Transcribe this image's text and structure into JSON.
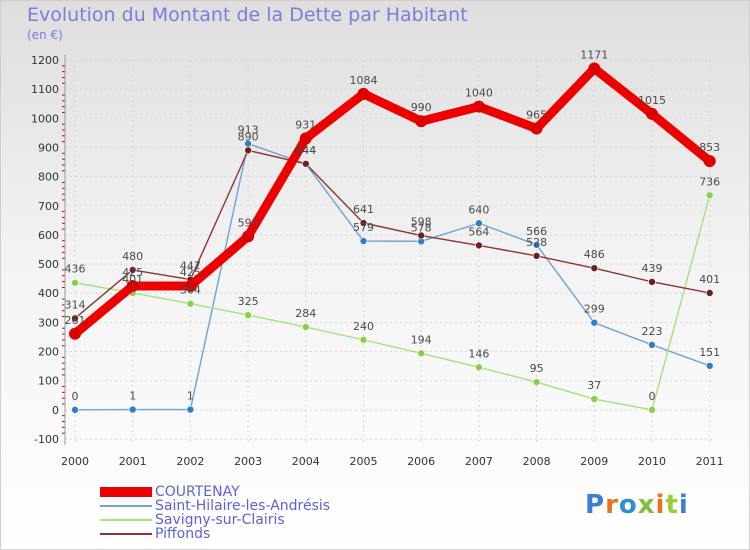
{
  "page": {
    "title": "Evolution du Montant de la Dette par Habitant",
    "subtitle": "(en €)",
    "logo_text": "Proxiti"
  },
  "colors": {
    "title": "#7b7ed8",
    "legend_text": "#5e62d8",
    "axis_text": "#333333",
    "gridline": "#d7d7d7",
    "logo": [
      "#3b7fd4",
      "#e7731e",
      "#2f8fd1",
      "#7fbf3f",
      "#e7731e",
      "#9fc93c",
      "#3b7fd4"
    ]
  },
  "chart_data": {
    "type": "line",
    "title": "Evolution du Montant de la Dette par Habitant",
    "subtitle": "(en €)",
    "x": [
      "2000",
      "2001",
      "2002",
      "2003",
      "2004",
      "2005",
      "2006",
      "2007",
      "2008",
      "2009",
      "2010",
      "2011"
    ],
    "y_ticks": [
      -100,
      0,
      100,
      200,
      300,
      400,
      500,
      600,
      700,
      800,
      900,
      1000,
      1100,
      1200
    ],
    "ylim": [
      -100,
      1200
    ],
    "grid": true,
    "legend_position": "bottom-left",
    "series": [
      {
        "name": "COURTENAY",
        "color": "#ee0000",
        "marker": "#dd0000",
        "values": [
          261,
          425,
          425,
          595,
          931,
          1084,
          990,
          1040,
          965,
          1171,
          1015,
          853
        ],
        "labels": [
          "261",
          "425",
          "425",
          "595",
          "931",
          "1084",
          "990",
          "1040",
          "965",
          "1171",
          "1015",
          "853"
        ]
      },
      {
        "name": "Saint-Hilaire-les-Andrésis",
        "color": "#6fa3d2",
        "marker": "#2f7fc8",
        "values": [
          0,
          1,
          1,
          913,
          844,
          579,
          578,
          640,
          566,
          299,
          223,
          151
        ],
        "labels": [
          "0",
          "1",
          "1",
          "913",
          "844",
          "579",
          "578",
          "640",
          "566",
          "299",
          "223",
          "151"
        ]
      },
      {
        "name": "Savigny-sur-Clairis",
        "color": "#a9e07a",
        "marker": "#86cf46",
        "values": [
          436,
          401,
          364,
          325,
          284,
          240,
          194,
          146,
          95,
          37,
          0,
          736
        ],
        "labels": [
          "436",
          "401",
          "364",
          "325",
          "284",
          "240",
          "194",
          "146",
          "95",
          "37",
          "0",
          "736"
        ]
      },
      {
        "name": "Piffonds",
        "color": "#8e3434",
        "marker": "#6e1e1e",
        "values": [
          314,
          480,
          447,
          890,
          844,
          641,
          598,
          564,
          528,
          486,
          439,
          401
        ],
        "labels": [
          "314",
          "480",
          "447",
          "890",
          "844",
          "641",
          "598",
          "564",
          "528",
          "486",
          "439",
          "401"
        ]
      }
    ]
  }
}
